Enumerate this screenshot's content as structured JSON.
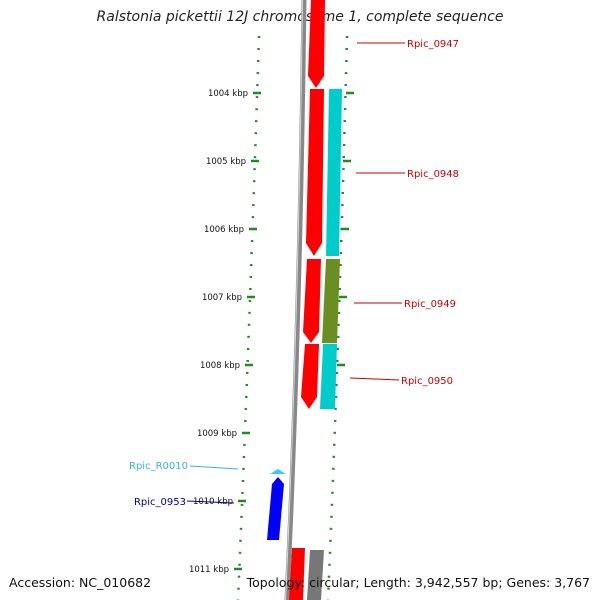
{
  "title": "Ralstonia pickettii 12J chromosome 1, complete sequence",
  "accession": "Accession: NC_010682",
  "topology": "Topology: circular; Length: 3,942,557 bp; Genes: 3,767",
  "colors": {
    "cds": "#ff0000",
    "teal_feature": "#00cccc",
    "olive_feature": "#6b8e23",
    "blue_gene": "#0000ff",
    "rrna_arrow": "#33ccff",
    "grey_feature": "#777777",
    "backbone": "#888888",
    "tick": "#228b22",
    "gene_label": "#cc0000",
    "rpic_r0010_label": "#33b5e5",
    "rpic_0953_label": "#000099"
  },
  "kbp_ticks": [
    "1004 kbp",
    "1005 kbp",
    "1006 kbp",
    "1007 kbp",
    "1008 kbp",
    "1009 kbp",
    "1010 kbp",
    "1011 kbp"
  ],
  "gene_labels": {
    "rpic_0947": "Rpic_0947",
    "rpic_0948": "Rpic_0948",
    "rpic_0949": "Rpic_0949",
    "rpic_0950": "Rpic_0950",
    "rpic_r0010": "Rpic_R0010",
    "rpic_0953": "Rpic_0953"
  }
}
